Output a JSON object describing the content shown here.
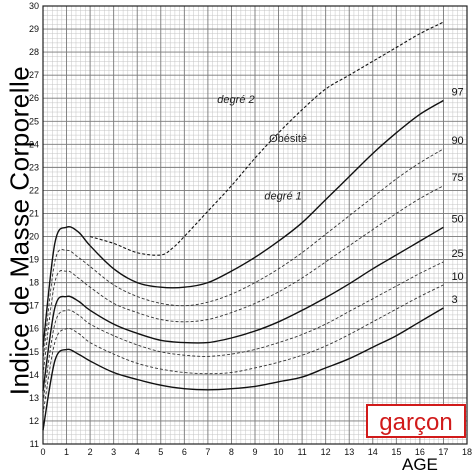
{
  "chart_data": {
    "type": "line",
    "ylabel": "Indice de Masse Corporelle",
    "xlabel": "AGE",
    "xlim": [
      0,
      18
    ],
    "ylim": [
      11,
      30
    ],
    "x_ticks": [
      0,
      1,
      2,
      3,
      4,
      5,
      6,
      7,
      8,
      9,
      10,
      11,
      12,
      13,
      14,
      15,
      16,
      17,
      18
    ],
    "y_ticks": [
      11,
      12,
      13,
      14,
      15,
      16,
      17,
      18,
      19,
      20,
      21,
      22,
      23,
      24,
      25,
      26,
      27,
      28,
      29,
      30
    ],
    "grid": true,
    "gender_label": "garçon",
    "annotations": {
      "degre2": "degré 2",
      "obesite": "Obésité",
      "degre1": "degré 1"
    },
    "series": [
      {
        "name": "3",
        "style": "solid",
        "x": [
          0,
          0.5,
          1,
          1.5,
          2,
          3,
          4,
          5,
          6,
          7,
          8,
          9,
          10,
          11,
          12,
          13,
          14,
          15,
          16,
          17
        ],
        "y": [
          11.6,
          14.6,
          15.1,
          14.9,
          14.6,
          14.1,
          13.8,
          13.55,
          13.4,
          13.35,
          13.4,
          13.5,
          13.7,
          13.9,
          14.3,
          14.7,
          15.2,
          15.7,
          16.3,
          16.9
        ]
      },
      {
        "name": "10",
        "style": "dashed",
        "x": [
          0,
          0.5,
          1,
          1.5,
          2,
          3,
          4,
          5,
          6,
          7,
          8,
          9,
          10,
          11,
          12,
          13,
          14,
          15,
          16,
          17
        ],
        "y": [
          12.3,
          15.4,
          16.0,
          15.8,
          15.4,
          14.9,
          14.5,
          14.25,
          14.1,
          14.05,
          14.1,
          14.3,
          14.55,
          14.85,
          15.25,
          15.75,
          16.3,
          16.85,
          17.4,
          17.9
        ]
      },
      {
        "name": "25",
        "style": "dashed",
        "x": [
          0,
          0.5,
          1,
          1.5,
          2,
          3,
          4,
          5,
          6,
          7,
          8,
          9,
          10,
          11,
          12,
          13,
          14,
          15,
          16,
          17
        ],
        "y": [
          12.8,
          16.2,
          16.8,
          16.6,
          16.2,
          15.7,
          15.3,
          15.0,
          14.85,
          14.8,
          14.9,
          15.1,
          15.4,
          15.75,
          16.2,
          16.75,
          17.3,
          17.85,
          18.4,
          18.9
        ]
      },
      {
        "name": "50",
        "style": "solid",
        "x": [
          0,
          0.5,
          1,
          1.5,
          2,
          3,
          4,
          5,
          6,
          7,
          8,
          9,
          10,
          11,
          12,
          13,
          14,
          15,
          16,
          17
        ],
        "y": [
          13.3,
          16.9,
          17.4,
          17.2,
          16.8,
          16.2,
          15.8,
          15.5,
          15.4,
          15.4,
          15.6,
          15.9,
          16.3,
          16.8,
          17.35,
          17.95,
          18.6,
          19.2,
          19.8,
          20.4
        ]
      },
      {
        "name": "75",
        "style": "dashed",
        "x": [
          0,
          0.5,
          1,
          1.5,
          2,
          3,
          4,
          5,
          6,
          7,
          8,
          9,
          10,
          11,
          12,
          13,
          14,
          15,
          16,
          17
        ],
        "y": [
          14.0,
          18.0,
          18.5,
          18.2,
          17.8,
          17.1,
          16.7,
          16.4,
          16.3,
          16.4,
          16.7,
          17.1,
          17.6,
          18.2,
          18.9,
          19.6,
          20.3,
          21.0,
          21.65,
          22.2
        ]
      },
      {
        "name": "90",
        "style": "dashed",
        "x": [
          0,
          0.5,
          1,
          1.5,
          2,
          3,
          4,
          5,
          6,
          7,
          8,
          9,
          10,
          11,
          12,
          13,
          14,
          15,
          16,
          17
        ],
        "y": [
          14.6,
          18.9,
          19.4,
          19.1,
          18.7,
          17.9,
          17.4,
          17.1,
          17.0,
          17.15,
          17.5,
          18.0,
          18.6,
          19.3,
          20.1,
          20.9,
          21.7,
          22.5,
          23.2,
          23.8
        ]
      },
      {
        "name": "97",
        "style": "solid",
        "x": [
          0,
          0.5,
          1,
          1.5,
          2,
          3,
          4,
          5,
          6,
          7,
          8,
          9,
          10,
          11,
          12,
          13,
          14,
          15,
          16,
          17
        ],
        "y": [
          15.2,
          19.7,
          20.4,
          20.2,
          19.6,
          18.6,
          18.0,
          17.8,
          17.8,
          18.0,
          18.5,
          19.1,
          19.8,
          20.6,
          21.6,
          22.6,
          23.6,
          24.5,
          25.3,
          25.9
        ]
      },
      {
        "name": "degré 2",
        "style": "dotted",
        "x": [
          2,
          3,
          4,
          5,
          5.5,
          6,
          7,
          8,
          9,
          10,
          11,
          12,
          13,
          14,
          15,
          16,
          17
        ],
        "y": [
          20.0,
          19.7,
          19.3,
          19.2,
          19.5,
          20.0,
          21.1,
          22.2,
          23.4,
          24.5,
          25.5,
          26.4,
          27.0,
          27.6,
          28.2,
          28.8,
          29.3
        ]
      }
    ]
  }
}
